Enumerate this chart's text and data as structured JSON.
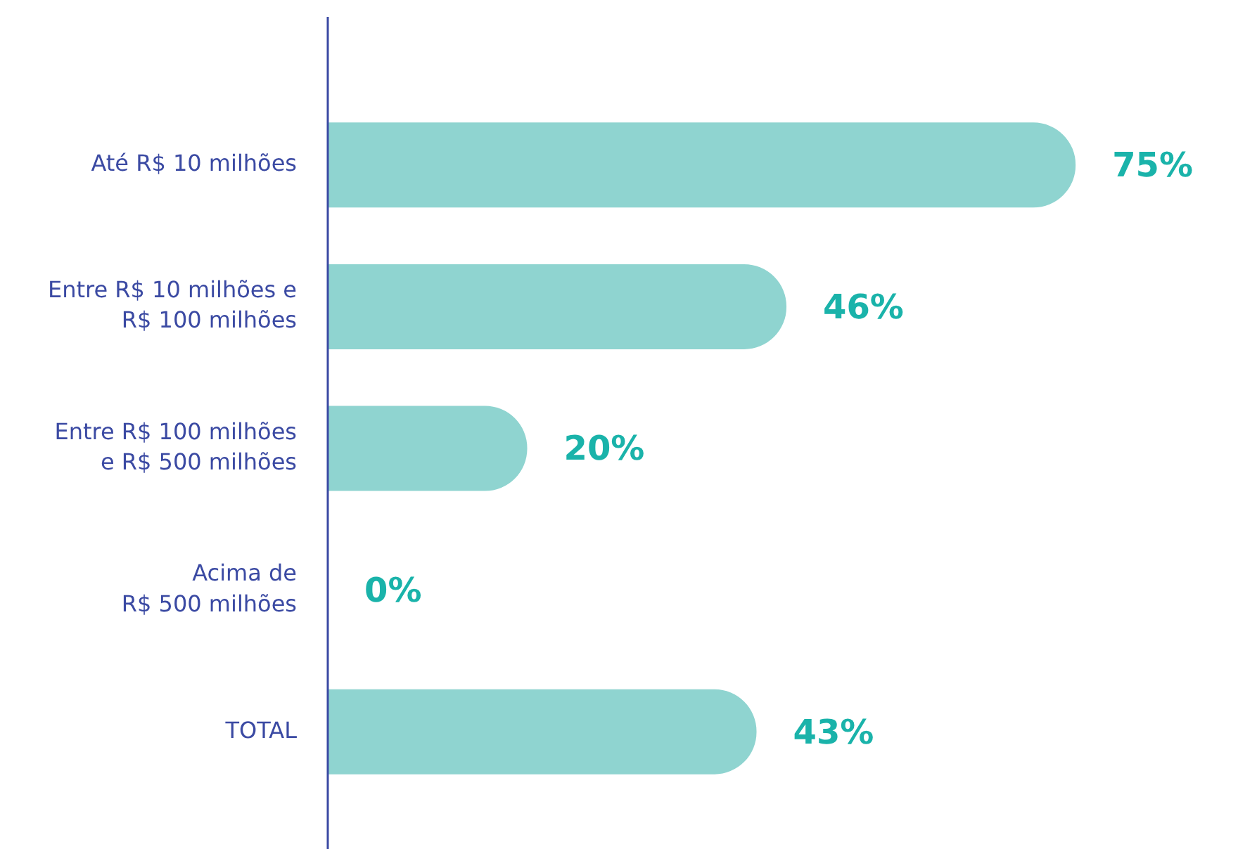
{
  "chart_data": {
    "type": "bar",
    "orientation": "horizontal",
    "categories": [
      "Até R$ 10 milhões",
      "Entre R$ 10 milhões e R$ 100 milhões",
      "Entre R$ 100 milhões e R$ 500 milhões",
      "Acima de R$ 500 milhões",
      "TOTAL"
    ],
    "values": [
      75,
      46,
      20,
      0,
      43
    ],
    "value_labels": [
      "75%",
      "46%",
      "20%",
      "0%",
      "43%"
    ],
    "color": "#8fd4d0",
    "tick_labels": "y",
    "grid": false,
    "legend": false
  }
}
